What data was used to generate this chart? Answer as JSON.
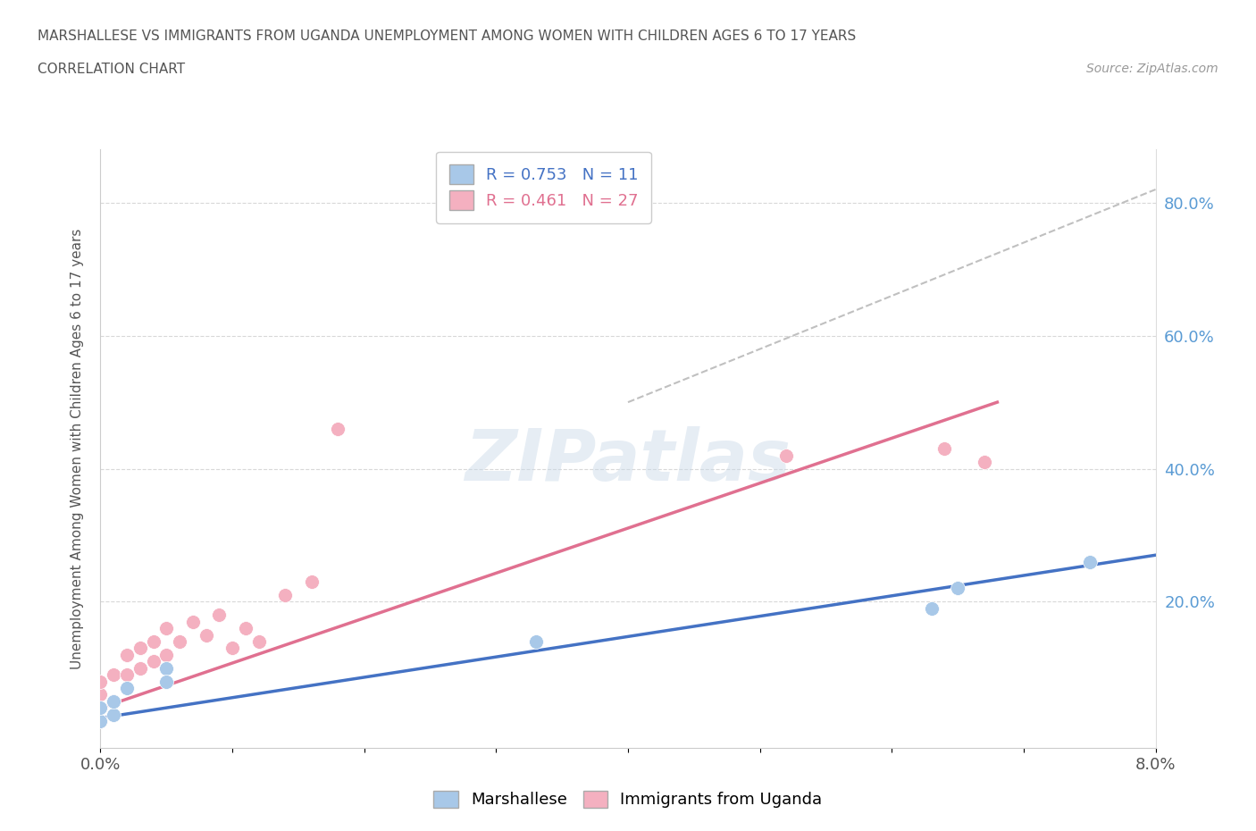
{
  "title_line1": "MARSHALLESE VS IMMIGRANTS FROM UGANDA UNEMPLOYMENT AMONG WOMEN WITH CHILDREN AGES 6 TO 17 YEARS",
  "title_line2": "CORRELATION CHART",
  "source_text": "Source: ZipAtlas.com",
  "ylabel": "Unemployment Among Women with Children Ages 6 to 17 years",
  "xlim": [
    0.0,
    0.08
  ],
  "ylim": [
    -0.02,
    0.88
  ],
  "ytick_values": [
    0.2,
    0.4,
    0.6,
    0.8
  ],
  "xtick_values": [
    0.0,
    0.01,
    0.02,
    0.03,
    0.04,
    0.05,
    0.06,
    0.07,
    0.08
  ],
  "marshallese_color": "#a8c8e8",
  "uganda_color": "#f4b0c0",
  "marshallese_line_color": "#4472c4",
  "uganda_line_color": "#e07090",
  "dashed_line_color": "#c0c0c0",
  "legend_R_marshallese": "0.753",
  "legend_N_marshallese": "11",
  "legend_R_uganda": "0.461",
  "legend_N_uganda": "27",
  "watermark": "ZIPatlas",
  "marshallese_points_x": [
    0.0,
    0.0,
    0.001,
    0.001,
    0.002,
    0.005,
    0.005,
    0.033,
    0.063,
    0.065,
    0.075
  ],
  "marshallese_points_y": [
    0.02,
    0.04,
    0.03,
    0.05,
    0.07,
    0.1,
    0.08,
    0.14,
    0.19,
    0.22,
    0.26
  ],
  "uganda_points_x": [
    0.0,
    0.0,
    0.0,
    0.0,
    0.001,
    0.001,
    0.002,
    0.002,
    0.003,
    0.003,
    0.004,
    0.004,
    0.005,
    0.005,
    0.006,
    0.007,
    0.008,
    0.009,
    0.01,
    0.011,
    0.012,
    0.014,
    0.016,
    0.018,
    0.052,
    0.064,
    0.067
  ],
  "uganda_points_y": [
    0.02,
    0.04,
    0.06,
    0.08,
    0.05,
    0.09,
    0.09,
    0.12,
    0.1,
    0.13,
    0.11,
    0.14,
    0.12,
    0.16,
    0.14,
    0.17,
    0.15,
    0.18,
    0.13,
    0.16,
    0.14,
    0.21,
    0.23,
    0.46,
    0.42,
    0.43,
    0.41
  ],
  "marshallese_trend_x": [
    0.0,
    0.08
  ],
  "marshallese_trend_y": [
    0.025,
    0.27
  ],
  "uganda_trend_x": [
    0.0,
    0.068
  ],
  "uganda_trend_y": [
    0.04,
    0.5
  ],
  "dashed_trend_x": [
    0.04,
    0.08
  ],
  "dashed_trend_y": [
    0.5,
    0.82
  ]
}
